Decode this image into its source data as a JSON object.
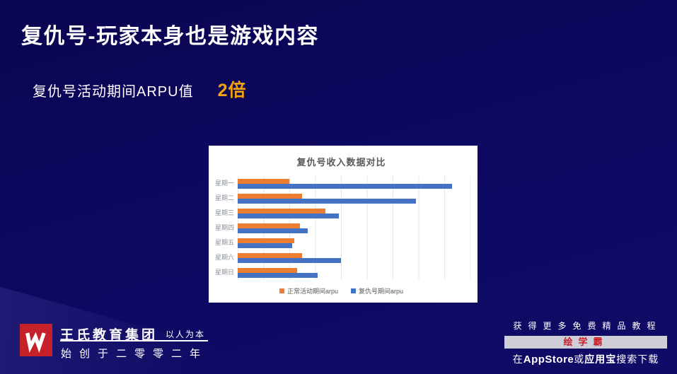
{
  "slide": {
    "title": "复仇号-玩家本身也是游戏内容",
    "subtitle_label": "复仇号活动期间ARPU值",
    "subtitle_highlight": "2倍"
  },
  "chart_data": {
    "type": "bar",
    "orientation": "horizontal",
    "title": "复仇号收入数据对比",
    "categories": [
      "星期一",
      "星期二",
      "星期三",
      "星期四",
      "星期五",
      "星期六",
      "星期日"
    ],
    "series": [
      {
        "name": "正常活动期间arpu",
        "color": "#ED7D31",
        "values": [
          2.0,
          2.5,
          3.4,
          2.4,
          2.2,
          2.5,
          2.3
        ]
      },
      {
        "name": "复仇号期间arpu",
        "color": "#4472C4",
        "values": [
          8.3,
          6.9,
          3.9,
          2.7,
          2.1,
          4.0,
          3.1
        ]
      }
    ],
    "xlim": [
      0,
      9
    ],
    "x_axis_tick_labels_visible": false,
    "value_unit": "gridline-intervals (axis unlabeled in source)",
    "grid": true,
    "legend_position": "bottom"
  },
  "footer": {
    "left": {
      "brand": "王氏教育集团",
      "motto": "以人为本",
      "since": "始创于二零零二年"
    },
    "right": {
      "line1": "获得更多免费精品教程",
      "badge": "绘学霸",
      "line2_prefix": "在",
      "line2_appstore": "AppStore",
      "line2_or": "或",
      "line2_yingyongbao": "应用宝",
      "line2_suffix": "搜索下载"
    }
  },
  "colors": {
    "background": "#0d0860",
    "highlight": "#F2A30A",
    "brand_red": "#c6202b",
    "series_orange": "#ED7D31",
    "series_blue": "#4472C4",
    "badge_bar_bg": "#cdced8",
    "badge_text": "#c8202a"
  }
}
